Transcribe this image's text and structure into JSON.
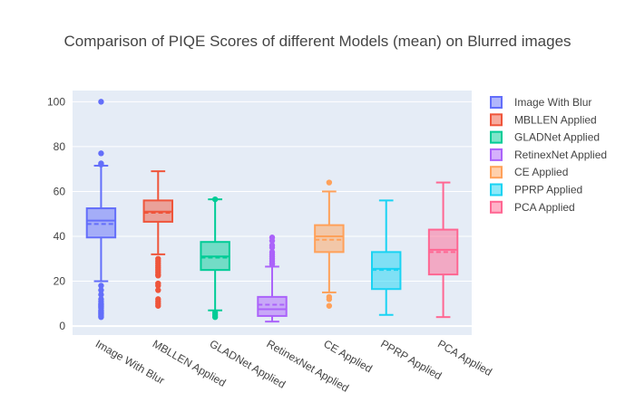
{
  "chart_data": {
    "type": "box",
    "title": "Comparison of PIQE Scores of different Models (mean) on Blurred images",
    "xlabel": "",
    "ylabel": "",
    "ylim": [
      -4,
      105
    ],
    "y_ticks": [
      0,
      20,
      40,
      60,
      80,
      100
    ],
    "grid": true,
    "legend_position": "top-right",
    "boxmean": true,
    "series": [
      {
        "name": "Image With Blur",
        "color": "#636efa",
        "min": 20,
        "q1": 39.5,
        "median": 47,
        "mean": 45.5,
        "q3": 52.5,
        "max": 71.5,
        "outliers": [
          100,
          77,
          72.5,
          72,
          18,
          16,
          14,
          12,
          11,
          10,
          9.5,
          9,
          8.5,
          8,
          7,
          6.5,
          6,
          5.5,
          5,
          4.5,
          4
        ]
      },
      {
        "name": "MBLLEN Applied",
        "color": "#ef553b",
        "min": 32,
        "q1": 46.5,
        "median": 51,
        "mean": 50.5,
        "q3": 56,
        "max": 69,
        "outliers": [
          30,
          29,
          28,
          27,
          26,
          25,
          24,
          23,
          22.5,
          19,
          18,
          16,
          12,
          11,
          10,
          9
        ]
      },
      {
        "name": "GLADNet Applied",
        "color": "#00cc96",
        "min": 7,
        "q1": 25,
        "median": 31,
        "mean": 30.5,
        "q3": 37.5,
        "max": 56.5,
        "outliers": [
          56.5,
          6,
          5,
          4
        ]
      },
      {
        "name": "RetinexNet Applied",
        "color": "#ab63fa",
        "min": 2,
        "q1": 4.5,
        "median": 7.5,
        "mean": 9.5,
        "q3": 13,
        "max": 26.5,
        "outliers": [
          39.5,
          38,
          36,
          35,
          33,
          32,
          31,
          30,
          29,
          28,
          27.5
        ]
      },
      {
        "name": "CE Applied",
        "color": "#ffa15a",
        "min": 15,
        "q1": 33,
        "median": 40,
        "mean": 38.5,
        "q3": 45,
        "max": 60,
        "outliers": [
          64,
          13,
          12,
          9
        ]
      },
      {
        "name": "PPRP Applied",
        "color": "#19d3f3",
        "min": 5,
        "q1": 16.5,
        "median": 25.5,
        "mean": 25,
        "q3": 33,
        "max": 56,
        "outliers": []
      },
      {
        "name": "PCA Applied",
        "color": "#ff6692",
        "min": 4,
        "q1": 23,
        "median": 34,
        "mean": 33,
        "q3": 43,
        "max": 64,
        "outliers": []
      }
    ]
  }
}
